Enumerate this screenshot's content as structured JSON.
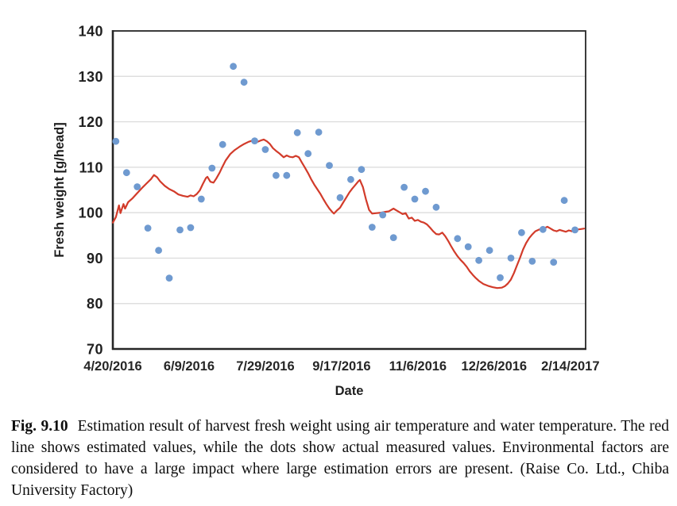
{
  "figure": {
    "caption": {
      "label": "Fig. 9.10",
      "text": "Estimation result of harvest fresh weight using air temperature and water temperature. The red line shows estimated values, while the dots show actual measured values. Environmental factors are considered to have a large impact where large estimation errors are present. (Raise Co. Ltd., Chiba University Factory)"
    }
  },
  "chart_data": {
    "type": "line+scatter",
    "title": "",
    "xlabel": "Date",
    "ylabel": "Fresh weight [g/head]",
    "ylim": [
      70,
      140
    ],
    "xlim_days": [
      0,
      310
    ],
    "grid": "horizontal gridlines only",
    "legend": "none",
    "y_ticks": [
      70,
      80,
      90,
      100,
      110,
      120,
      130,
      140
    ],
    "x_ticks": [
      {
        "day": 0,
        "label": "4/20/2016"
      },
      {
        "day": 50,
        "label": "6/9/2016"
      },
      {
        "day": 100,
        "label": "7/29/2016"
      },
      {
        "day": 150,
        "label": "9/17/2016"
      },
      {
        "day": 200,
        "label": "11/6/2016"
      },
      {
        "day": 250,
        "label": "12/26/2016"
      },
      {
        "day": 300,
        "label": "2/14/2017"
      }
    ],
    "colors": {
      "estimated_line": "#d23b2a",
      "measured_dot": "#6f9ad0",
      "gridline": "#d9d9d9",
      "axis_border": "#262626",
      "text": "#1f1f1f"
    },
    "series": [
      {
        "name": "Estimated values (red line)",
        "type": "line",
        "points": [
          [
            0,
            97.8
          ],
          [
            2,
            99.0
          ],
          [
            4,
            101.6
          ],
          [
            5,
            99.9
          ],
          [
            7,
            101.9
          ],
          [
            8,
            100.9
          ],
          [
            10,
            102.3
          ],
          [
            13,
            103.2
          ],
          [
            16,
            104.3
          ],
          [
            19,
            105.4
          ],
          [
            22,
            106.4
          ],
          [
            25,
            107.4
          ],
          [
            27,
            108.3
          ],
          [
            29,
            107.8
          ],
          [
            31,
            106.9
          ],
          [
            34,
            105.9
          ],
          [
            37,
            105.2
          ],
          [
            40,
            104.7
          ],
          [
            43,
            104.0
          ],
          [
            46,
            103.7
          ],
          [
            49,
            103.5
          ],
          [
            51,
            103.8
          ],
          [
            53,
            103.6
          ],
          [
            55,
            104.1
          ],
          [
            57,
            104.9
          ],
          [
            59,
            106.3
          ],
          [
            61,
            107.6
          ],
          [
            62,
            107.9
          ],
          [
            64,
            106.8
          ],
          [
            66,
            106.6
          ],
          [
            68,
            107.6
          ],
          [
            70,
            108.8
          ],
          [
            72,
            110.2
          ],
          [
            74,
            111.5
          ],
          [
            77,
            112.9
          ],
          [
            80,
            113.8
          ],
          [
            83,
            114.5
          ],
          [
            86,
            115.1
          ],
          [
            89,
            115.6
          ],
          [
            91,
            115.8
          ],
          [
            93,
            116.0
          ],
          [
            95,
            115.6
          ],
          [
            97,
            115.9
          ],
          [
            99,
            116.1
          ],
          [
            101,
            115.7
          ],
          [
            103,
            115.1
          ],
          [
            105,
            114.2
          ],
          [
            107,
            113.6
          ],
          [
            109,
            113.1
          ],
          [
            111,
            112.5
          ],
          [
            112,
            112.2
          ],
          [
            114,
            112.6
          ],
          [
            116,
            112.3
          ],
          [
            118,
            112.2
          ],
          [
            120,
            112.5
          ],
          [
            122,
            112.2
          ],
          [
            124,
            111.0
          ],
          [
            126,
            109.9
          ],
          [
            128,
            108.7
          ],
          [
            130,
            107.4
          ],
          [
            132,
            106.2
          ],
          [
            134,
            105.2
          ],
          [
            136,
            104.2
          ],
          [
            138,
            103.0
          ],
          [
            140,
            101.9
          ],
          [
            142,
            100.9
          ],
          [
            144,
            100.1
          ],
          [
            145,
            99.8
          ],
          [
            147,
            100.5
          ],
          [
            149,
            101.1
          ],
          [
            151,
            102.2
          ],
          [
            153,
            103.3
          ],
          [
            155,
            104.4
          ],
          [
            157,
            105.3
          ],
          [
            159,
            106.1
          ],
          [
            161,
            106.9
          ],
          [
            162,
            107.2
          ],
          [
            164,
            105.6
          ],
          [
            166,
            102.9
          ],
          [
            168,
            100.6
          ],
          [
            170,
            99.8
          ],
          [
            173,
            99.9
          ],
          [
            176,
            100.0
          ],
          [
            179,
            100.2
          ],
          [
            181,
            100.3
          ],
          [
            184,
            100.9
          ],
          [
            186,
            100.5
          ],
          [
            188,
            100.1
          ],
          [
            190,
            99.7
          ],
          [
            192,
            99.9
          ],
          [
            194,
            98.7
          ],
          [
            196,
            98.9
          ],
          [
            198,
            98.2
          ],
          [
            200,
            98.4
          ],
          [
            202,
            98.0
          ],
          [
            204,
            97.8
          ],
          [
            206,
            97.4
          ],
          [
            208,
            96.7
          ],
          [
            210,
            95.9
          ],
          [
            212,
            95.3
          ],
          [
            214,
            95.2
          ],
          [
            216,
            95.6
          ],
          [
            218,
            94.8
          ],
          [
            220,
            93.7
          ],
          [
            222,
            92.5
          ],
          [
            224,
            91.4
          ],
          [
            226,
            90.4
          ],
          [
            228,
            89.6
          ],
          [
            230,
            88.9
          ],
          [
            232,
            88.1
          ],
          [
            234,
            87.1
          ],
          [
            236,
            86.3
          ],
          [
            238,
            85.6
          ],
          [
            240,
            85.0
          ],
          [
            243,
            84.3
          ],
          [
            246,
            83.9
          ],
          [
            249,
            83.6
          ],
          [
            252,
            83.4
          ],
          [
            255,
            83.5
          ],
          [
            257,
            83.8
          ],
          [
            259,
            84.4
          ],
          [
            261,
            85.3
          ],
          [
            263,
            86.7
          ],
          [
            265,
            88.4
          ],
          [
            267,
            90.1
          ],
          [
            269,
            91.9
          ],
          [
            271,
            93.3
          ],
          [
            273,
            94.4
          ],
          [
            275,
            95.2
          ],
          [
            277,
            95.9
          ],
          [
            279,
            96.2
          ],
          [
            281,
            96.5
          ],
          [
            283,
            96.6
          ],
          [
            285,
            96.9
          ],
          [
            287,
            96.5
          ],
          [
            289,
            96.1
          ],
          [
            291,
            95.9
          ],
          [
            293,
            96.2
          ],
          [
            295,
            96.0
          ],
          [
            297,
            95.8
          ],
          [
            299,
            96.1
          ],
          [
            301,
            95.9
          ],
          [
            303,
            96.2
          ],
          [
            305,
            96.3
          ],
          [
            307,
            96.4
          ],
          [
            309,
            96.5
          ]
        ]
      },
      {
        "name": "Actual measured values (dots)",
        "type": "scatter",
        "points": [
          [
            2,
            115.7
          ],
          [
            9,
            108.8
          ],
          [
            16,
            105.7
          ],
          [
            23,
            96.6
          ],
          [
            30,
            91.7
          ],
          [
            37,
            85.6
          ],
          [
            44,
            96.2
          ],
          [
            51,
            96.7
          ],
          [
            58,
            103.0
          ],
          [
            65,
            109.8
          ],
          [
            72,
            115.0
          ],
          [
            79,
            132.2
          ],
          [
            86,
            128.7
          ],
          [
            93,
            115.8
          ],
          [
            100,
            113.9
          ],
          [
            107,
            108.2
          ],
          [
            114,
            108.2
          ],
          [
            121,
            117.6
          ],
          [
            128,
            113.0
          ],
          [
            135,
            117.7
          ],
          [
            142,
            110.4
          ],
          [
            149,
            103.3
          ],
          [
            156,
            107.3
          ],
          [
            163,
            109.5
          ],
          [
            170,
            96.8
          ],
          [
            177,
            99.5
          ],
          [
            184,
            94.5
          ],
          [
            191,
            105.6
          ],
          [
            198,
            103.0
          ],
          [
            205,
            104.7
          ],
          [
            212,
            101.2
          ],
          [
            226,
            94.3
          ],
          [
            233,
            92.5
          ],
          [
            240,
            89.5
          ],
          [
            247,
            91.7
          ],
          [
            254,
            85.7
          ],
          [
            261,
            90.0
          ],
          [
            268,
            95.6
          ],
          [
            275,
            89.3
          ],
          [
            282,
            96.3
          ],
          [
            289,
            89.1
          ],
          [
            296,
            102.7
          ],
          [
            303,
            96.2
          ]
        ]
      }
    ]
  }
}
